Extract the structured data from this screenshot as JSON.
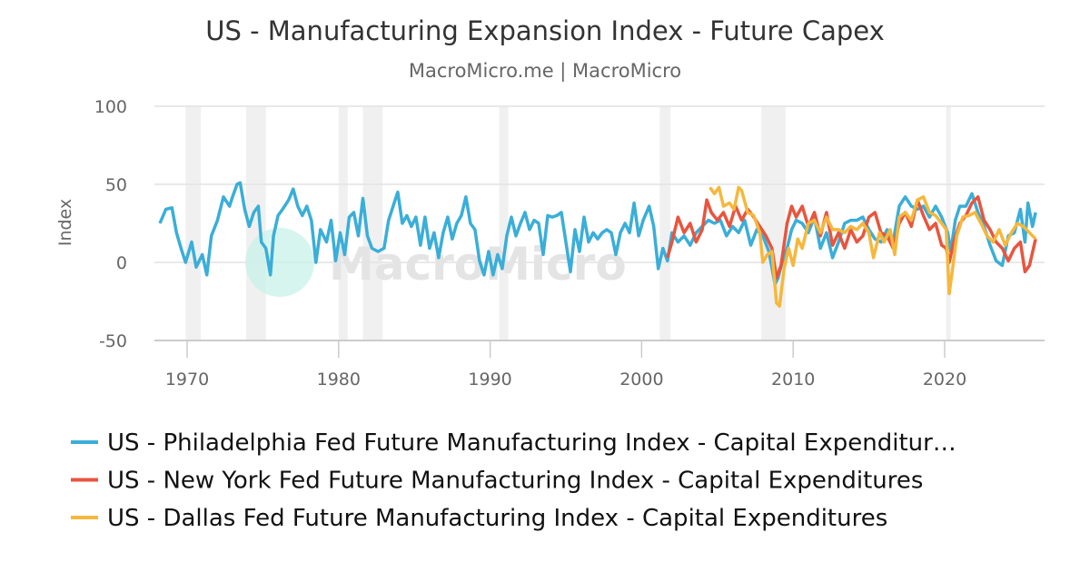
{
  "chart_data": {
    "type": "line",
    "title": "US - Manufacturing Expansion Index - Future Capex",
    "subtitle": "MacroMicro.me | MacroMicro",
    "ylabel": "Index",
    "xlabel": "",
    "ylim": [
      -50,
      100
    ],
    "yticks": [
      100,
      50,
      0,
      -50
    ],
    "xlim": [
      1968,
      2026.5
    ],
    "xticks": [
      1970,
      1980,
      1990,
      2000,
      2010,
      2020
    ],
    "grid": true,
    "legend_position": "bottom",
    "watermark": "MacroMicro",
    "shaded_periods": [
      [
        1969.9,
        1970.9
      ],
      [
        1973.9,
        1975.2
      ],
      [
        1980.0,
        1980.6
      ],
      [
        1981.6,
        1982.9
      ],
      [
        1990.6,
        1991.2
      ],
      [
        2001.2,
        2001.9
      ],
      [
        2007.9,
        2009.5
      ],
      [
        2020.1,
        2020.4
      ]
    ],
    "series": [
      {
        "name": "US - Philadelphia Fed Future Manufacturing Index - Capital Expenditur…",
        "color": "#3aaed8",
        "x": [
          1968.2,
          1968.6,
          1969.0,
          1969.3,
          1969.6,
          1969.9,
          1970.3,
          1970.6,
          1971.0,
          1971.3,
          1971.6,
          1972.0,
          1972.4,
          1972.8,
          1973.0,
          1973.3,
          1973.5,
          1973.8,
          1974.1,
          1974.4,
          1974.7,
          1974.9,
          1975.2,
          1975.5,
          1975.7,
          1976.0,
          1976.3,
          1976.7,
          1977.0,
          1977.3,
          1977.6,
          1977.9,
          1978.2,
          1978.5,
          1978.8,
          1979.2,
          1979.5,
          1979.8,
          1980.1,
          1980.4,
          1980.7,
          1981.0,
          1981.3,
          1981.6,
          1981.9,
          1982.2,
          1982.6,
          1983.0,
          1983.3,
          1983.6,
          1983.9,
          1984.2,
          1984.5,
          1984.8,
          1985.1,
          1985.4,
          1985.7,
          1986.0,
          1986.3,
          1986.6,
          1986.9,
          1987.2,
          1987.5,
          1987.8,
          1988.1,
          1988.4,
          1988.7,
          1989.0,
          1989.3,
          1989.6,
          1989.9,
          1990.2,
          1990.5,
          1990.8,
          1991.1,
          1991.4,
          1991.7,
          1992.0,
          1992.3,
          1992.6,
          1992.9,
          1993.2,
          1993.5,
          1993.8,
          1994.1,
          1994.4,
          1994.7,
          1995.0,
          1995.3,
          1995.6,
          1995.9,
          1996.2,
          1996.5,
          1996.8,
          1997.1,
          1997.4,
          1997.7,
          1998.0,
          1998.3,
          1998.6,
          1998.9,
          1999.2,
          1999.5,
          1999.8,
          2000.1,
          2000.5,
          2000.8,
          2001.1,
          2001.4,
          2001.7,
          2002.0,
          2002.4,
          2002.8,
          2003.2,
          2003.6,
          2004.0,
          2004.4,
          2004.8,
          2005.2,
          2005.6,
          2006.0,
          2006.4,
          2006.8,
          2007.2,
          2007.6,
          2008.0,
          2008.4,
          2008.8,
          2009.0,
          2009.3,
          2009.6,
          2009.9,
          2010.2,
          2010.6,
          2011.0,
          2011.4,
          2011.8,
          2012.2,
          2012.6,
          2013.0,
          2013.4,
          2013.8,
          2014.2,
          2014.6,
          2015.0,
          2015.4,
          2015.8,
          2016.2,
          2016.6,
          2017.0,
          2017.4,
          2017.8,
          2018.2,
          2018.6,
          2019.0,
          2019.4,
          2019.8,
          2020.2,
          2020.4,
          2020.7,
          2021.0,
          2021.4,
          2021.8,
          2022.2,
          2022.6,
          2023.0,
          2023.4,
          2023.8,
          2024.2,
          2024.6,
          2025.0,
          2025.3,
          2025.5,
          2025.8,
          2026.0
        ],
        "values": [
          25,
          34,
          35,
          19,
          9,
          0,
          13,
          -3,
          5,
          -8,
          17,
          27,
          42,
          36,
          42,
          50,
          51,
          34,
          23,
          32,
          36,
          13,
          9,
          -8,
          17,
          30,
          34,
          40,
          47,
          36,
          30,
          36,
          27,
          0,
          21,
          13,
          27,
          1,
          19,
          5,
          29,
          32,
          17,
          41,
          17,
          9,
          7,
          9,
          27,
          36,
          45,
          25,
          30,
          23,
          29,
          11,
          29,
          9,
          19,
          3,
          19,
          29,
          15,
          25,
          30,
          42,
          25,
          21,
          1,
          -8,
          7,
          -8,
          5,
          -4,
          17,
          29,
          17,
          25,
          32,
          21,
          27,
          25,
          5,
          30,
          29,
          30,
          32,
          13,
          -6,
          21,
          7,
          29,
          13,
          19,
          15,
          19,
          21,
          19,
          5,
          19,
          25,
          19,
          38,
          17,
          27,
          36,
          23,
          -4,
          9,
          1,
          19,
          13,
          17,
          11,
          19,
          23,
          27,
          25,
          27,
          17,
          23,
          19,
          27,
          11,
          21,
          17,
          7,
          -14,
          -10,
          1,
          9,
          21,
          27,
          25,
          19,
          29,
          9,
          19,
          3,
          13,
          25,
          27,
          27,
          29,
          21,
          15,
          13,
          21,
          13,
          36,
          42,
          36,
          34,
          36,
          29,
          36,
          29,
          19,
          7,
          27,
          36,
          36,
          44,
          32,
          23,
          11,
          1,
          -2,
          17,
          19,
          34,
          13,
          38,
          23,
          32
        ]
      },
      {
        "name": "US - New York Fed Future Manufacturing Index - Capital Expenditures",
        "color": "#e8553e",
        "x": [
          2001.7,
          2002.0,
          2002.4,
          2002.8,
          2003.2,
          2003.6,
          2004.0,
          2004.3,
          2004.6,
          2005.0,
          2005.4,
          2005.8,
          2006.2,
          2006.6,
          2007.0,
          2007.4,
          2007.8,
          2008.2,
          2008.6,
          2008.9,
          2009.2,
          2009.6,
          2009.9,
          2010.2,
          2010.6,
          2011.0,
          2011.4,
          2011.8,
          2012.2,
          2012.6,
          2013.0,
          2013.4,
          2013.8,
          2014.2,
          2014.6,
          2015.0,
          2015.4,
          2015.8,
          2016.2,
          2016.6,
          2017.0,
          2017.4,
          2017.8,
          2018.2,
          2018.6,
          2019.0,
          2019.4,
          2019.8,
          2020.1,
          2020.3,
          2020.6,
          2021.0,
          2021.4,
          2021.8,
          2022.2,
          2022.6,
          2023.0,
          2023.4,
          2023.8,
          2024.2,
          2024.6,
          2025.0,
          2025.3,
          2025.6,
          2026.0
        ],
        "values": [
          3,
          13,
          29,
          19,
          25,
          13,
          21,
          40,
          32,
          27,
          32,
          23,
          36,
          27,
          34,
          29,
          23,
          17,
          9,
          -10,
          -2,
          25,
          36,
          29,
          36,
          23,
          32,
          17,
          32,
          11,
          19,
          9,
          21,
          13,
          17,
          29,
          32,
          19,
          17,
          9,
          25,
          32,
          23,
          40,
          30,
          21,
          25,
          11,
          9,
          0,
          13,
          25,
          30,
          38,
          42,
          27,
          21,
          13,
          9,
          1,
          9,
          13,
          -6,
          -2,
          15
        ]
      },
      {
        "name": "US - Dallas Fed Future Manufacturing Index - Capital Expenditures",
        "color": "#f5b83d",
        "x": [
          2004.5,
          2004.8,
          2005.1,
          2005.4,
          2005.8,
          2006.1,
          2006.4,
          2006.6,
          2007.0,
          2007.4,
          2007.8,
          2008.0,
          2008.3,
          2008.6,
          2008.9,
          2009.1,
          2009.4,
          2009.7,
          2010.0,
          2010.3,
          2010.6,
          2011.0,
          2011.4,
          2011.8,
          2012.2,
          2012.6,
          2013.0,
          2013.4,
          2013.8,
          2014.2,
          2014.6,
          2015.0,
          2015.3,
          2015.7,
          2016.0,
          2016.4,
          2016.7,
          2017.0,
          2017.4,
          2017.8,
          2018.2,
          2018.6,
          2019.0,
          2019.4,
          2019.8,
          2020.1,
          2020.3,
          2020.5,
          2020.8,
          2021.2,
          2021.6,
          2022.0,
          2022.4,
          2022.8,
          2023.2,
          2023.6,
          2024.0,
          2024.4,
          2024.8,
          2025.2,
          2025.6,
          2026.0
        ],
        "values": [
          48,
          44,
          48,
          36,
          38,
          34,
          48,
          46,
          32,
          30,
          19,
          0,
          5,
          7,
          -26,
          -28,
          -4,
          9,
          -2,
          15,
          9,
          25,
          27,
          19,
          29,
          21,
          21,
          19,
          23,
          21,
          25,
          19,
          3,
          19,
          13,
          21,
          5,
          29,
          32,
          27,
          40,
          42,
          32,
          30,
          25,
          21,
          -20,
          -6,
          17,
          29,
          30,
          32,
          25,
          17,
          13,
          21,
          11,
          19,
          25,
          23,
          19,
          15
        ]
      }
    ]
  }
}
